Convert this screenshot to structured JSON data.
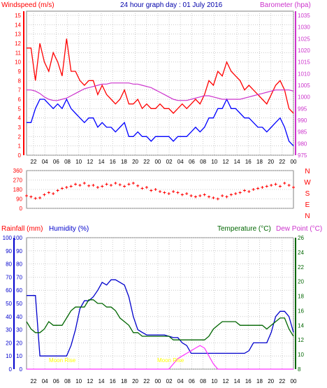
{
  "header": {
    "left_label": "Windspeed (m/s)",
    "title": "24 hour graph day : 01 July 2016",
    "right_label": "Barometer (hpa)"
  },
  "colors": {
    "windspeed": "#ff0000",
    "gust_base": "#0000ff",
    "barometer": "#cc33cc",
    "direction": "#ff0000",
    "humidity": "#0000cc",
    "temperature": "#006600",
    "rain": "#ff33ff",
    "moon": "#ffff00",
    "grid": "#c0c0c0"
  },
  "chart_data": [
    {
      "type": "line",
      "name": "windspeed-barometer",
      "x_ticks": [
        "22",
        "04",
        "06",
        "08",
        "10",
        "12",
        "14",
        "16",
        "18",
        "20",
        "22",
        "00",
        "02",
        "04",
        "06",
        "08",
        "10",
        "12",
        "14",
        "16",
        "18",
        "20",
        "22",
        "00"
      ],
      "y_left_ticks": [
        "0",
        "1",
        "2",
        "3",
        "4",
        "5",
        "6",
        "7",
        "8",
        "9",
        "10",
        "11",
        "12",
        "13",
        "14",
        "15"
      ],
      "y_left_range": [
        0,
        15
      ],
      "y_right_ticks": [
        "975",
        "980",
        "985",
        "990",
        "995",
        "1000",
        "1005",
        "1010",
        "1015",
        "1020",
        "1025",
        "1030",
        "1035"
      ],
      "y_right_range": [
        975,
        1035
      ],
      "series": [
        {
          "name": "Windspeed (m/s)",
          "values": [
            11.5,
            11.5,
            8.0,
            12.0,
            10.0,
            9.0,
            11.0,
            10.0,
            8.5,
            12.5,
            9.0,
            9.0,
            8.0,
            7.5,
            8.0,
            8.0,
            6.5,
            7.5,
            6.5,
            6.0,
            5.5,
            6.0,
            7.0,
            5.5,
            5.5,
            6.0,
            5.0,
            5.5,
            5.0,
            5.0,
            5.5,
            5.0,
            5.0,
            4.5,
            5.0,
            5.5,
            5.0,
            5.5,
            6.0,
            5.5,
            6.5,
            8.0,
            7.5,
            9.0,
            8.5,
            10.0,
            9.0,
            8.5,
            8.0,
            7.0,
            7.5,
            7.0,
            6.5,
            6.0,
            5.5,
            6.5,
            7.5,
            8.0,
            7.0,
            5.0,
            4.5
          ]
        },
        {
          "name": "",
          "values": [
            3.5,
            3.5,
            5.0,
            6.0,
            6.0,
            5.5,
            5.0,
            5.5,
            5.0,
            6.0,
            5.0,
            4.5,
            4.0,
            3.5,
            4.0,
            4.0,
            3.0,
            3.5,
            3.0,
            3.0,
            2.5,
            3.0,
            3.5,
            2.0,
            2.0,
            2.5,
            2.0,
            2.0,
            1.5,
            2.0,
            2.0,
            2.0,
            2.0,
            1.5,
            2.0,
            2.0,
            2.0,
            2.5,
            3.0,
            2.5,
            3.0,
            4.0,
            4.0,
            5.0,
            5.0,
            6.0,
            5.0,
            5.0,
            4.5,
            4.0,
            4.0,
            3.5,
            3.0,
            3.0,
            2.5,
            3.0,
            3.5,
            4.0,
            3.0,
            1.5,
            1.0
          ]
        },
        {
          "name": "Barometer (hpa)",
          "values": [
            1003,
            1003,
            1002.5,
            1001.5,
            1000,
            999,
            998.5,
            998.5,
            999,
            999.5,
            1000.5,
            1001.5,
            1002.5,
            1003.5,
            1004,
            1004.5,
            1005,
            1005.5,
            1005.5,
            1006,
            1006,
            1006,
            1006,
            1006,
            1005.5,
            1005.5,
            1005,
            1004.5,
            1004,
            1003,
            1002,
            1001,
            1000,
            999,
            998.5,
            998.5,
            998.5,
            999,
            999.5,
            1000,
            1000.5,
            1000.5,
            1000,
            999.5,
            999,
            999,
            999,
            999,
            999,
            999.5,
            1000,
            1000.5,
            1001,
            1001.5,
            1002,
            1002.5,
            1003,
            1003,
            1003,
            1003,
            1002.5
          ]
        }
      ]
    },
    {
      "type": "scatter",
      "name": "wind-direction",
      "y_ticks": [
        "360",
        "270",
        "180",
        "90",
        "0"
      ],
      "y_range": [
        0,
        360
      ],
      "compass_labels": [
        "N",
        "W",
        "S",
        "E",
        "N"
      ],
      "values": [
        120,
        110,
        95,
        100,
        130,
        150,
        140,
        170,
        190,
        200,
        210,
        230,
        220,
        240,
        215,
        220,
        200,
        210,
        230,
        220,
        240,
        225,
        210,
        230,
        240,
        215,
        190,
        200,
        170,
        180,
        160,
        150,
        140,
        160,
        150,
        130,
        140,
        120,
        110,
        120,
        130,
        110,
        100,
        90,
        120,
        110,
        130,
        140,
        150,
        170,
        160,
        180,
        190,
        200,
        210,
        220,
        230,
        210,
        240,
        220,
        200
      ]
    },
    {
      "type": "line",
      "name": "rain-humidity-temperature",
      "x_ticks": [
        "22",
        "04",
        "06",
        "08",
        "10",
        "12",
        "14",
        "16",
        "18",
        "20",
        "22",
        "00",
        "02",
        "04",
        "06",
        "08",
        "10",
        "12",
        "14",
        "16",
        "18",
        "20",
        "22",
        "00"
      ],
      "y_left_ticks": [
        "0",
        "10",
        "20",
        "30",
        "40",
        "50",
        "60",
        "70",
        "80",
        "90",
        "100"
      ],
      "y_left_range": [
        0,
        100
      ],
      "y_right_ticks": [
        "8",
        "10",
        "12",
        "14",
        "16",
        "18",
        "20",
        "22",
        "24",
        "26"
      ],
      "y_right_range": [
        8,
        26
      ],
      "labels": {
        "rainfall": "Rainfall (mm)",
        "humidity": "Humidity (%)",
        "temperature": "Temperature (°C)",
        "dewpoint": "Dew Point (°C)",
        "moon_rise": "Moon Rise",
        "moon_set": "Moon Rise"
      },
      "series": [
        {
          "name": "Humidity (%)",
          "values": [
            56,
            56,
            56,
            10,
            10,
            10,
            10,
            10,
            10,
            10,
            18,
            30,
            46,
            52,
            52,
            55,
            60,
            66,
            64,
            68,
            68,
            66,
            64,
            55,
            40,
            30,
            28,
            26,
            26,
            26,
            26,
            26,
            25,
            24,
            24,
            20,
            18,
            12,
            12,
            12,
            12,
            12,
            12,
            12,
            12,
            12,
            12,
            12,
            12,
            12,
            14,
            20,
            20,
            20,
            20,
            28,
            40,
            44,
            44,
            40,
            28
          ]
        },
        {
          "name": "Temperature (°C)",
          "values": [
            14.5,
            13.5,
            13.0,
            13.0,
            13.5,
            14.5,
            14.0,
            14.0,
            14.0,
            15.0,
            16.0,
            16.5,
            16.5,
            16.5,
            17.5,
            17.5,
            17.0,
            17.0,
            16.5,
            16.5,
            16.0,
            15.0,
            14.5,
            14.0,
            13.0,
            13.0,
            12.5,
            12.5,
            12.5,
            12.5,
            12.5,
            12.5,
            12.5,
            12.0,
            12.0,
            12.0,
            12.0,
            12.0,
            12.0,
            12.0,
            12.0,
            12.5,
            13.5,
            14.0,
            14.5,
            14.5,
            14.5,
            14.5,
            14.0,
            14.0,
            14.0,
            14.0,
            14.0,
            14.0,
            13.5,
            14.0,
            14.5,
            15.0,
            15.0,
            13.5,
            12.5
          ]
        },
        {
          "name": "Rainfall (mm)",
          "values": [
            0,
            0,
            0,
            0,
            0,
            0,
            0,
            0,
            0,
            0,
            0,
            0,
            0,
            0,
            0,
            0,
            0,
            0,
            0,
            0,
            0,
            0,
            0,
            0,
            0,
            0,
            0,
            0,
            0,
            0,
            0,
            0,
            0,
            0,
            0,
            0,
            0,
            0,
            0,
            0,
            0,
            0,
            0,
            0,
            0,
            0,
            0,
            0,
            0,
            0,
            0,
            0,
            0,
            0,
            0,
            0,
            0,
            0,
            0,
            0,
            0
          ]
        },
        {
          "name": "",
          "values": [
            0,
            0,
            0,
            0,
            0,
            0,
            0,
            0,
            0,
            0,
            0,
            0,
            0,
            0,
            0,
            0,
            0,
            0,
            0,
            0,
            0,
            0,
            0,
            0,
            0,
            0,
            0,
            0,
            0,
            0,
            0,
            0,
            0,
            4,
            8,
            10,
            12,
            14,
            16,
            18,
            16,
            10,
            4,
            0,
            0,
            0,
            0,
            0,
            0,
            0,
            0,
            0,
            0,
            0,
            0,
            0,
            0,
            0,
            0,
            0,
            0
          ]
        }
      ]
    }
  ]
}
